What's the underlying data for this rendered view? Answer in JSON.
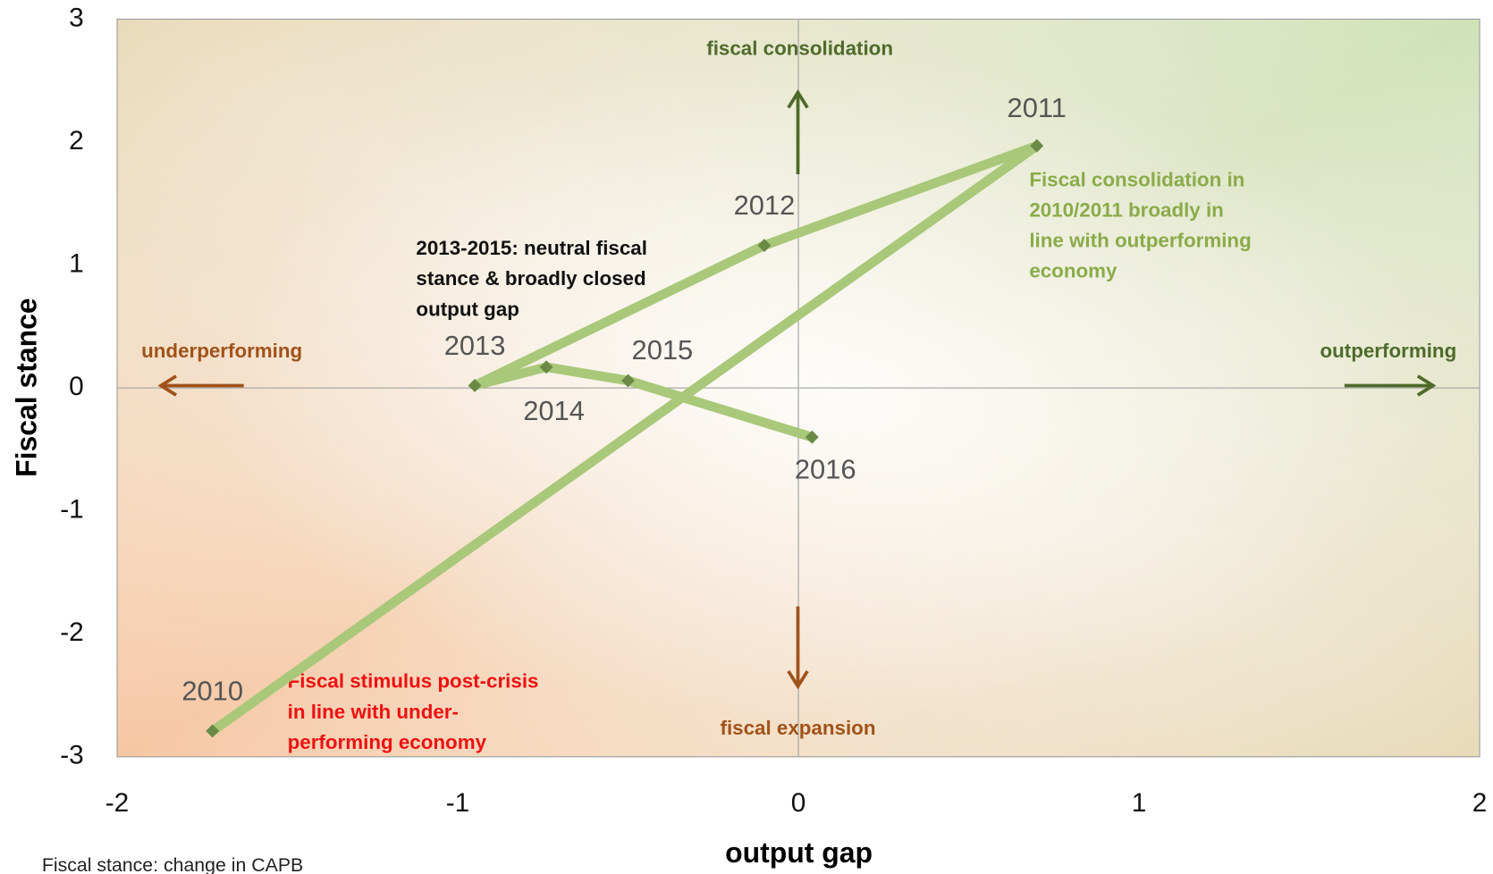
{
  "chart_data": {
    "type": "line",
    "x_label": "output gap",
    "y_label": "Fiscal stance",
    "xlim": [
      -2,
      2
    ],
    "xticks": [
      -2,
      -1,
      0,
      1,
      2
    ],
    "ylim": [
      -3,
      3
    ],
    "yticks": [
      -3,
      -2,
      -1,
      0,
      1,
      2,
      3
    ],
    "series": [
      {
        "color": "#a9c87a",
        "marker_color": "#6b8a45",
        "x": [
          -1.72,
          0.7,
          -0.1,
          -0.95,
          -0.74,
          -0.5,
          0.04
        ],
        "values": [
          -2.79,
          1.97,
          1.16,
          0.02,
          0.17,
          0.06,
          -0.4
        ],
        "point_labels": [
          "2010",
          "2011",
          "2012",
          "2013",
          "2014",
          "2015",
          "2016"
        ]
      }
    ],
    "annotations": [
      {
        "lines": [
          "fiscal consolidation"
        ],
        "color": "#4e6b2a"
      },
      {
        "lines": [
          "fiscal expansion"
        ],
        "color": "#a0521a"
      },
      {
        "lines": [
          "underperforming"
        ],
        "color": "#a0521a"
      },
      {
        "lines": [
          "outperforming"
        ],
        "color": "#4e6b2a"
      },
      {
        "lines": [
          "2013-2015: neutral fiscal",
          "stance & broadly closed",
          "output gap"
        ],
        "color": "#111111"
      },
      {
        "lines": [
          "Fiscal consolidation in",
          "2010/2011 broadly in",
          "line with outperforming",
          "economy"
        ],
        "color": "#8aab4a"
      },
      {
        "lines": [
          "Fiscal stimulus post-crisis",
          "in line with under-",
          "performing economy"
        ],
        "color": "#ee1111"
      }
    ],
    "footnote": "Fiscal stance: change in CAPB"
  }
}
